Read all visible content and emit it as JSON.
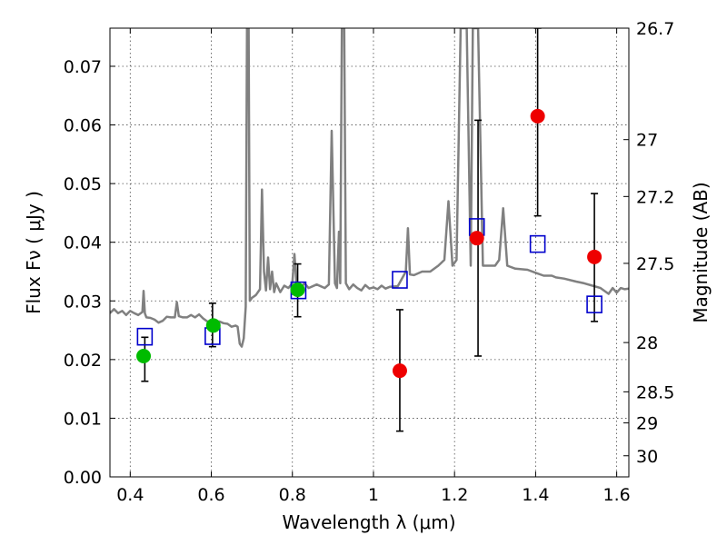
{
  "chart_data": {
    "type": "scatter",
    "xlabel": "Wavelength  λ (μm)",
    "ylabel": "Flux  Fν  ( μJy )",
    "ylabel_right": "Magnitude (AB)",
    "xlim": [
      0.35,
      1.63
    ],
    "ylim": [
      0.0,
      0.0765
    ],
    "grid": true,
    "x_ticks": [
      0.4,
      0.6,
      0.8,
      1.0,
      1.2,
      1.4,
      1.6
    ],
    "x_tick_labels": [
      "0.4",
      "0.6",
      "0.8",
      "1",
      "1.2",
      "1.4",
      "1.6"
    ],
    "y_ticks": [
      0.0,
      0.01,
      0.02,
      0.03,
      0.04,
      0.05,
      0.06,
      0.07
    ],
    "y_tick_labels": [
      "0.00",
      "0.01",
      "0.02",
      "0.03",
      "0.04",
      "0.05",
      "0.06",
      "0.07"
    ],
    "right_ticks": [
      {
        "flux": 0.0765,
        "label": "26.7"
      },
      {
        "flux": 0.0575,
        "label": "27"
      },
      {
        "flux": 0.0478,
        "label": "27.2"
      },
      {
        "flux": 0.0364,
        "label": "27.5"
      },
      {
        "flux": 0.0229,
        "label": "28"
      },
      {
        "flux": 0.0145,
        "label": "28.5"
      },
      {
        "flux": 0.0092,
        "label": "29"
      },
      {
        "flux": 0.0036,
        "label": "30"
      }
    ],
    "colors": {
      "spectrum": "#808080",
      "green": "#00bb00",
      "red": "#ee0000",
      "model": "#0000cc",
      "errorbar": "#000000"
    },
    "spectrum": [
      [
        0.35,
        0.0279
      ],
      [
        0.36,
        0.0286
      ],
      [
        0.37,
        0.0279
      ],
      [
        0.38,
        0.0283
      ],
      [
        0.39,
        0.0276
      ],
      [
        0.4,
        0.0283
      ],
      [
        0.41,
        0.0279
      ],
      [
        0.42,
        0.0276
      ],
      [
        0.43,
        0.0281
      ],
      [
        0.433,
        0.0317
      ],
      [
        0.436,
        0.0279
      ],
      [
        0.44,
        0.0272
      ],
      [
        0.45,
        0.0271
      ],
      [
        0.46,
        0.0268
      ],
      [
        0.47,
        0.0263
      ],
      [
        0.48,
        0.0266
      ],
      [
        0.49,
        0.0273
      ],
      [
        0.5,
        0.0272
      ],
      [
        0.51,
        0.0272
      ],
      [
        0.515,
        0.0298
      ],
      [
        0.52,
        0.0274
      ],
      [
        0.53,
        0.0272
      ],
      [
        0.54,
        0.0272
      ],
      [
        0.55,
        0.0276
      ],
      [
        0.56,
        0.0272
      ],
      [
        0.57,
        0.0277
      ],
      [
        0.58,
        0.027
      ],
      [
        0.59,
        0.0265
      ],
      [
        0.6,
        0.0264
      ],
      [
        0.62,
        0.0265
      ],
      [
        0.63,
        0.0262
      ],
      [
        0.64,
        0.0261
      ],
      [
        0.65,
        0.0256
      ],
      [
        0.66,
        0.0258
      ],
      [
        0.665,
        0.0256
      ],
      [
        0.67,
        0.0227
      ],
      [
        0.675,
        0.0222
      ],
      [
        0.68,
        0.0236
      ],
      [
        0.685,
        0.029
      ],
      [
        0.688,
        0.0765
      ],
      [
        0.692,
        0.0765
      ],
      [
        0.695,
        0.03
      ],
      [
        0.7,
        0.0305
      ],
      [
        0.71,
        0.031
      ],
      [
        0.72,
        0.032
      ],
      [
        0.725,
        0.049
      ],
      [
        0.73,
        0.035
      ],
      [
        0.735,
        0.0318
      ],
      [
        0.74,
        0.0374
      ],
      [
        0.745,
        0.032
      ],
      [
        0.75,
        0.035
      ],
      [
        0.755,
        0.0315
      ],
      [
        0.76,
        0.033
      ],
      [
        0.77,
        0.0315
      ],
      [
        0.78,
        0.0326
      ],
      [
        0.79,
        0.0322
      ],
      [
        0.8,
        0.033
      ],
      [
        0.805,
        0.038
      ],
      [
        0.81,
        0.033
      ],
      [
        0.82,
        0.0322
      ],
      [
        0.83,
        0.033
      ],
      [
        0.84,
        0.0322
      ],
      [
        0.86,
        0.0328
      ],
      [
        0.88,
        0.0322
      ],
      [
        0.89,
        0.0328
      ],
      [
        0.897,
        0.059
      ],
      [
        0.905,
        0.033
      ],
      [
        0.91,
        0.0322
      ],
      [
        0.915,
        0.0418
      ],
      [
        0.918,
        0.033
      ],
      [
        0.922,
        0.0765
      ],
      [
        0.928,
        0.0765
      ],
      [
        0.932,
        0.033
      ],
      [
        0.94,
        0.032
      ],
      [
        0.95,
        0.0328
      ],
      [
        0.96,
        0.0322
      ],
      [
        0.97,
        0.0318
      ],
      [
        0.98,
        0.0327
      ],
      [
        0.99,
        0.0321
      ],
      [
        1.0,
        0.0323
      ],
      [
        1.01,
        0.032
      ],
      [
        1.02,
        0.0326
      ],
      [
        1.03,
        0.0321
      ],
      [
        1.04,
        0.0324
      ],
      [
        1.06,
        0.0325
      ],
      [
        1.08,
        0.035
      ],
      [
        1.085,
        0.0424
      ],
      [
        1.09,
        0.0345
      ],
      [
        1.1,
        0.0344
      ],
      [
        1.12,
        0.035
      ],
      [
        1.14,
        0.035
      ],
      [
        1.16,
        0.036
      ],
      [
        1.175,
        0.037
      ],
      [
        1.185,
        0.047
      ],
      [
        1.195,
        0.036
      ],
      [
        1.205,
        0.037
      ],
      [
        1.215,
        0.0765
      ],
      [
        1.23,
        0.0765
      ],
      [
        1.24,
        0.036
      ],
      [
        1.245,
        0.0765
      ],
      [
        1.258,
        0.0765
      ],
      [
        1.27,
        0.036
      ],
      [
        1.28,
        0.036
      ],
      [
        1.3,
        0.036
      ],
      [
        1.31,
        0.037
      ],
      [
        1.32,
        0.0458
      ],
      [
        1.33,
        0.036
      ],
      [
        1.35,
        0.0355
      ],
      [
        1.38,
        0.0353
      ],
      [
        1.4,
        0.0348
      ],
      [
        1.42,
        0.0343
      ],
      [
        1.44,
        0.0343
      ],
      [
        1.45,
        0.034
      ],
      [
        1.47,
        0.0338
      ],
      [
        1.5,
        0.0333
      ],
      [
        1.52,
        0.033
      ],
      [
        1.54,
        0.0326
      ],
      [
        1.56,
        0.0322
      ],
      [
        1.58,
        0.0312
      ],
      [
        1.59,
        0.0322
      ],
      [
        1.6,
        0.0314
      ],
      [
        1.61,
        0.0322
      ],
      [
        1.62,
        0.032
      ],
      [
        1.63,
        0.0321
      ]
    ],
    "green_points": [
      {
        "x": 0.433,
        "y": 0.0206
      },
      {
        "x": 0.605,
        "y": 0.0258
      },
      {
        "x": 0.813,
        "y": 0.0319
      }
    ],
    "red_points": [
      {
        "x": 1.065,
        "y": 0.0181
      },
      {
        "x": 1.255,
        "y": 0.0407
      },
      {
        "x": 1.405,
        "y": 0.0615
      },
      {
        "x": 1.545,
        "y": 0.0375
      }
    ],
    "model_points": [
      {
        "x": 0.436,
        "y": 0.0239
      },
      {
        "x": 0.603,
        "y": 0.024
      },
      {
        "x": 0.815,
        "y": 0.0318
      },
      {
        "x": 1.065,
        "y": 0.0336
      },
      {
        "x": 1.255,
        "y": 0.0426
      },
      {
        "x": 1.405,
        "y": 0.0397
      },
      {
        "x": 1.545,
        "y": 0.0294
      }
    ],
    "error_bars": [
      {
        "x": 0.436,
        "lo": 0.0163,
        "hi": 0.0238
      },
      {
        "x": 0.603,
        "lo": 0.0222,
        "hi": 0.0296
      },
      {
        "x": 0.813,
        "lo": 0.0273,
        "hi": 0.0363
      },
      {
        "x": 1.065,
        "lo": 0.0078,
        "hi": 0.0285
      },
      {
        "x": 1.258,
        "lo": 0.0206,
        "hi": 0.0608
      },
      {
        "x": 1.405,
        "lo": 0.0445,
        "hi": 0.0765
      },
      {
        "x": 1.545,
        "lo": 0.0265,
        "hi": 0.0483
      }
    ]
  }
}
